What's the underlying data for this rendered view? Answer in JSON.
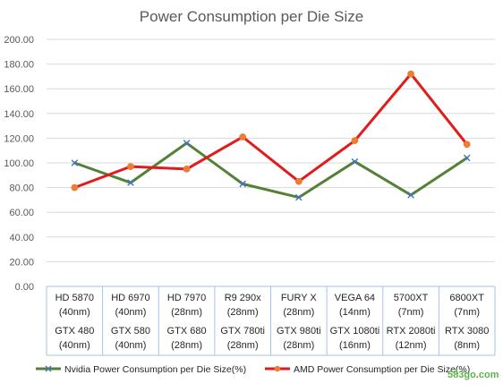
{
  "chart_data": {
    "type": "line",
    "title": "Power Consumption per Die Size",
    "categories": [
      [
        "HD 5870",
        "(40nm)",
        "GTX 480",
        "(40nm)"
      ],
      [
        "HD 6970",
        "(40nm)",
        "GTX 580",
        "(40nm)"
      ],
      [
        "HD 7970",
        "(28nm)",
        "GTX 680",
        "(28nm)"
      ],
      [
        "R9 290x",
        "(28nm)",
        "GTX 780ti",
        "(28nm)"
      ],
      [
        "FURY X",
        "(28nm)",
        "GTX 980ti",
        "(28nm)"
      ],
      [
        "VEGA 64",
        "(14nm)",
        "GTX 1080ti",
        "(16nm)"
      ],
      [
        "5700XT",
        "(7nm)",
        "RTX 2080ti",
        "(12nm)"
      ],
      [
        "6800XT",
        "(7nm)",
        "RTX 3080",
        "(8nm)"
      ]
    ],
    "series": [
      {
        "name": "Nvidia Power Consumption per Die Size(%)",
        "color": "#538135",
        "marker": "x",
        "marker_color": "#4472c4",
        "values": [
          100,
          84,
          116,
          83,
          72,
          101,
          74,
          104
        ]
      },
      {
        "name": "AMD Power Consumption per Die Size(%)",
        "color": "#e31a1c",
        "marker": "circle",
        "marker_color": "#ed7d31",
        "values": [
          80,
          97,
          95,
          121,
          85,
          118,
          172,
          115
        ]
      }
    ],
    "ylim": [
      0,
      200
    ],
    "yticks": [
      "0.00",
      "20.00",
      "40.00",
      "60.00",
      "80.00",
      "100.00",
      "120.00",
      "140.00",
      "160.00",
      "180.00",
      "200.00"
    ],
    "grid": true,
    "legend_position": "bottom"
  },
  "watermark": {
    "main": "583go",
    "dot": ".",
    "suffix": "com"
  }
}
